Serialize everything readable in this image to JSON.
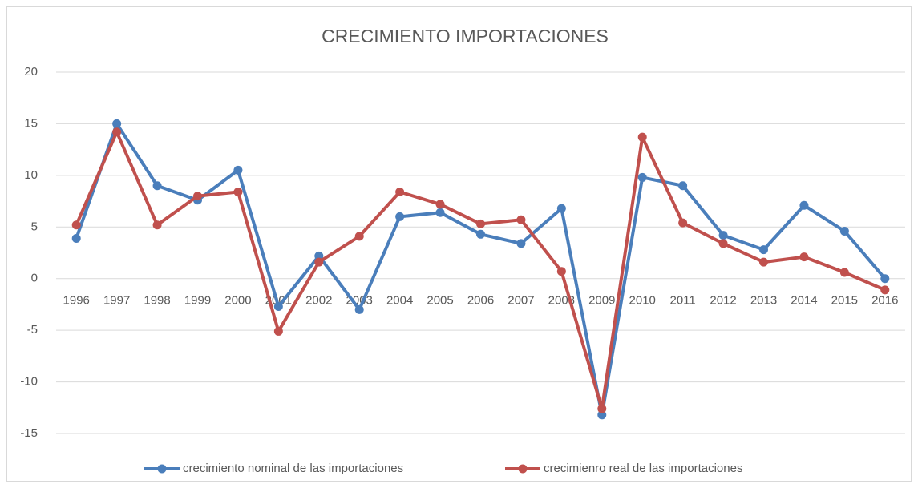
{
  "chart_data": {
    "type": "line",
    "title": "CRECIMIENTO IMPORTACIONES",
    "categories": [
      "1996",
      "1997",
      "1998",
      "1999",
      "2000",
      "2001",
      "2002",
      "2003",
      "2004",
      "2005",
      "2006",
      "2007",
      "2008",
      "2009",
      "2010",
      "2011",
      "2012",
      "2013",
      "2014",
      "2015",
      "2016"
    ],
    "series": [
      {
        "name": "crecimiento nominal de las importaciones",
        "color": "#4a7ebb",
        "values": [
          3.9,
          15.0,
          9.0,
          7.6,
          10.5,
          -2.7,
          2.2,
          -3.0,
          6.0,
          6.4,
          4.3,
          3.4,
          6.8,
          -13.2,
          9.8,
          9.0,
          4.2,
          2.8,
          7.1,
          4.6,
          0.0
        ]
      },
      {
        "name": "crecimienro real de las importaciones",
        "color": "#c0504d",
        "values": [
          5.2,
          14.2,
          5.2,
          8.0,
          8.4,
          -5.1,
          1.6,
          4.1,
          8.4,
          7.2,
          5.3,
          5.7,
          0.7,
          -12.6,
          13.7,
          5.4,
          3.4,
          1.6,
          2.1,
          0.6,
          -1.1
        ]
      }
    ],
    "ylim": [
      -15,
      20
    ],
    "yticks": [
      -15,
      -10,
      -5,
      0,
      5,
      10,
      15,
      20
    ],
    "grid": true,
    "legend": "bottom"
  }
}
